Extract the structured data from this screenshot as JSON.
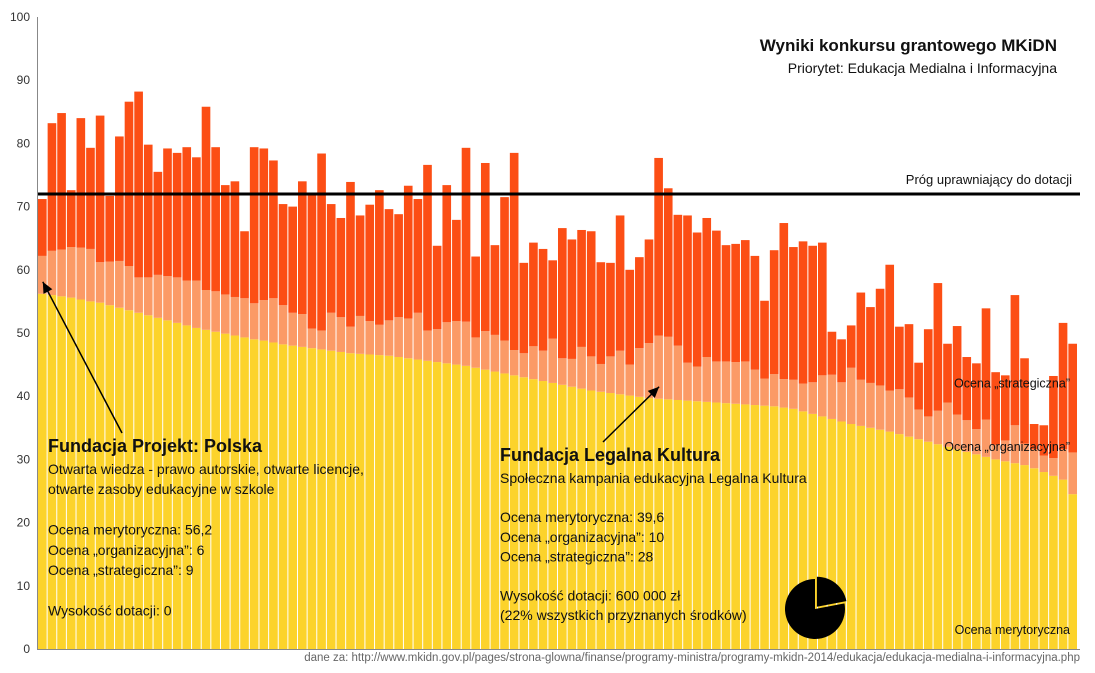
{
  "chart_data": {
    "type": "bar",
    "stacked": true,
    "title": "Wyniki konkursu grantowego MKiDN",
    "subtitle": "Priorytet: Edukacja Medialna i Informacyjna",
    "ylim": [
      0,
      100
    ],
    "yticks": [
      0,
      10,
      20,
      30,
      40,
      50,
      60,
      70,
      80,
      90,
      100
    ],
    "grid": false,
    "threshold": {
      "value": 72,
      "label": "Próg uprawniający do dotacji"
    },
    "series": [
      {
        "name": "Ocena merytoryczna",
        "color": "#fcd32b",
        "label_color": "#fde98a",
        "values": [
          56.2,
          56,
          55.8,
          55.6,
          55.3,
          55,
          54.8,
          54.4,
          54,
          53.6,
          53.2,
          52.8,
          52.4,
          52,
          51.6,
          51.2,
          50.8,
          50.5,
          50.2,
          49.9,
          49.6,
          49.3,
          49,
          48.8,
          48.5,
          48.2,
          48,
          47.8,
          47.6,
          47.4,
          47.2,
          47,
          46.8,
          46.7,
          46.6,
          46.5,
          46.4,
          46.2,
          46,
          45.8,
          45.6,
          45.4,
          45.2,
          45,
          44.8,
          44.5,
          44.2,
          43.9,
          43.6,
          43.3,
          43,
          42.7,
          42.4,
          42.1,
          41.8,
          41.5,
          41.2,
          40.9,
          40.7,
          40.5,
          40.3,
          40.1,
          39.9,
          39.7,
          39.6,
          39.5,
          39.4,
          39.3,
          39.2,
          39.1,
          39,
          38.9,
          38.8,
          38.7,
          38.6,
          38.5,
          38.4,
          38.2,
          38,
          37.6,
          37.2,
          36.8,
          36.4,
          36,
          35.6,
          35.3,
          35,
          34.7,
          34.4,
          34,
          33.6,
          33.2,
          32.8,
          32.4,
          32,
          31.6,
          31.2,
          30.8,
          30.4,
          30,
          29.7,
          29.4,
          29.1,
          28.6,
          28,
          27.4,
          26.8,
          24.5
        ]
      },
      {
        "name": "Ocena „organizacyjna”",
        "color": "#fb9a66",
        "label_color": "#fdc9a8",
        "values": [
          6,
          7,
          7.4,
          8,
          8.2,
          8.3,
          6.4,
          6.9,
          7.4,
          7,
          5.6,
          6,
          6.8,
          7,
          7.2,
          7.1,
          7.5,
          6.3,
          6.4,
          6.2,
          6.1,
          6.2,
          5.7,
          6.4,
          7,
          6.2,
          5.2,
          5.2,
          3.1,
          3,
          6,
          5.5,
          4.2,
          6,
          5.3,
          4.8,
          5.6,
          6.3,
          6.3,
          7.4,
          4.8,
          5.2,
          6.5,
          6.9,
          7,
          4.8,
          6.1,
          5.8,
          5.2,
          4,
          3.8,
          5.2,
          4.8,
          7,
          4.2,
          4.4,
          6.6,
          5.4,
          4.4,
          5.8,
          6.9,
          4.9,
          7.7,
          8.7,
          10,
          9.9,
          8.6,
          6,
          5.5,
          7.1,
          6.5,
          6.6,
          6.6,
          6.8,
          5.6,
          4.3,
          5.1,
          4.5,
          4.6,
          4.4,
          5,
          6.5,
          7,
          6.2,
          8.9,
          7.3,
          7.1,
          7,
          6.5,
          7.1,
          6.2,
          4.7,
          4,
          5.3,
          7,
          5.5,
          5,
          4,
          5.9,
          2.3,
          3.3,
          6,
          3.4,
          3,
          2.6,
          2.8,
          4.8,
          6.6
        ]
      },
      {
        "name": "Ocena „strategiczna”",
        "color": "#fc4e15",
        "label_color": "#fc4e15",
        "values": [
          9,
          20.2,
          21.6,
          9,
          20.5,
          16,
          23.2,
          10.4,
          19.7,
          26,
          29.4,
          21,
          16.3,
          20.2,
          19.7,
          21.1,
          19.5,
          29,
          22.8,
          17.3,
          18.3,
          10.6,
          24.7,
          24,
          21.8,
          16,
          16.8,
          21,
          21.2,
          28,
          17.2,
          15.7,
          22.9,
          15.9,
          18.4,
          21.3,
          17.6,
          16.3,
          21,
          18,
          26.2,
          13.2,
          21.7,
          16,
          27.5,
          12.8,
          26.6,
          14.2,
          22.7,
          31.2,
          14.3,
          16.4,
          16.1,
          12.4,
          20.6,
          18.9,
          18.5,
          19.8,
          16.1,
          14.8,
          21.4,
          15,
          14.4,
          16.4,
          28.1,
          23.5,
          20.7,
          23.3,
          21.2,
          22,
          20.7,
          18.4,
          18.7,
          19.2,
          18,
          12.3,
          19.6,
          24.7,
          21,
          22.5,
          21.6,
          21,
          6.8,
          6.8,
          6.7,
          13.8,
          12,
          15.3,
          19.9,
          9.9,
          11.6,
          7.4,
          13.8,
          20.2,
          9.3,
          14,
          10,
          10.4,
          17.6,
          11.5,
          10.3,
          20.6,
          13.5,
          4,
          4.8,
          13,
          20,
          17.2
        ]
      }
    ],
    "legend": "inline labels at right"
  },
  "annotations": [
    {
      "title": "Fundacja Projekt: Polska",
      "lines": [
        "Otwarta wiedza - prawo autorskie, otwarte licencje,",
        "otwarte zasoby edukacyjne w szkole",
        "",
        "Ocena merytoryczna: 56,2",
        "Ocena „organizacyjna”: 6",
        "Ocena „strategiczna”: 9",
        "",
        "Wysokość dotacji: 0"
      ],
      "target_bar": 0
    },
    {
      "title": "Fundacja Legalna Kultura",
      "lines": [
        "Społeczna kampania edukacyjna Legalna Kultura",
        "",
        "Ocena merytoryczna: 39,6",
        "Ocena „organizacyjna”: 10",
        "Ocena „strategiczna”: 28",
        "",
        "Wysokość dotacji: 600 000 zł",
        "(22% wszystkich przyznanych środków)"
      ],
      "target_bar": 64
    }
  ],
  "pie": {
    "share_percent": 22,
    "color": "#000000"
  },
  "source": "dane za: http://www.mkidn.gov.pl/pages/strona-glowna/finanse/programy-ministra/programy-mkidn-2014/edukacja/edukacja-medialna-i-informacyjna.php"
}
